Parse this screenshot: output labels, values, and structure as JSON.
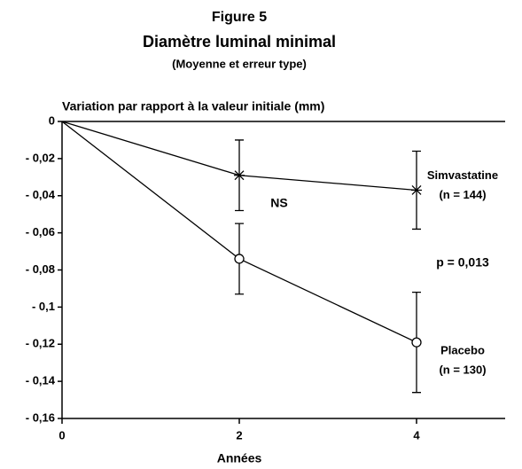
{
  "chart_data": {
    "type": "line",
    "title": "Figure 5",
    "subtitle": "Diamètre luminal minimal",
    "subtitle2": "(Moyenne et erreur type)",
    "ylabel": "Variation par rapport à la valeur initiale (mm)",
    "xlabel": "Années",
    "x": [
      0,
      2,
      4
    ],
    "xlim": [
      0,
      5
    ],
    "xticks": [
      0,
      2,
      4
    ],
    "ylim": [
      -0.16,
      0
    ],
    "yticks": [
      0,
      {
        "value": -0.02,
        "label": "- 0,02"
      },
      {
        "value": -0.04,
        "label": "- 0,04"
      },
      {
        "value": -0.06,
        "label": "- 0,06"
      },
      {
        "value": -0.08,
        "label": "- 0,08"
      },
      {
        "value": -0.1,
        "label": "- 0,1"
      },
      {
        "value": -0.12,
        "label": "- 0,12"
      },
      {
        "value": -0.14,
        "label": "- 0,14"
      },
      {
        "value": -0.16,
        "label": "- 0,16"
      }
    ],
    "series": [
      {
        "name": "Simvastatine",
        "n_label": "(n = 144)",
        "color": "#000000",
        "marker": "x",
        "values": [
          0,
          -0.029,
          -0.037
        ],
        "errors": [
          null,
          0.019,
          0.021
        ]
      },
      {
        "name": "Placebo",
        "n_label": "(n = 130)",
        "color": "#000000",
        "marker": "circle",
        "values": [
          0,
          -0.074,
          -0.119
        ],
        "errors": [
          null,
          0.019,
          0.027
        ]
      }
    ],
    "annotations": [
      "NS",
      "p = 0,013"
    ]
  }
}
